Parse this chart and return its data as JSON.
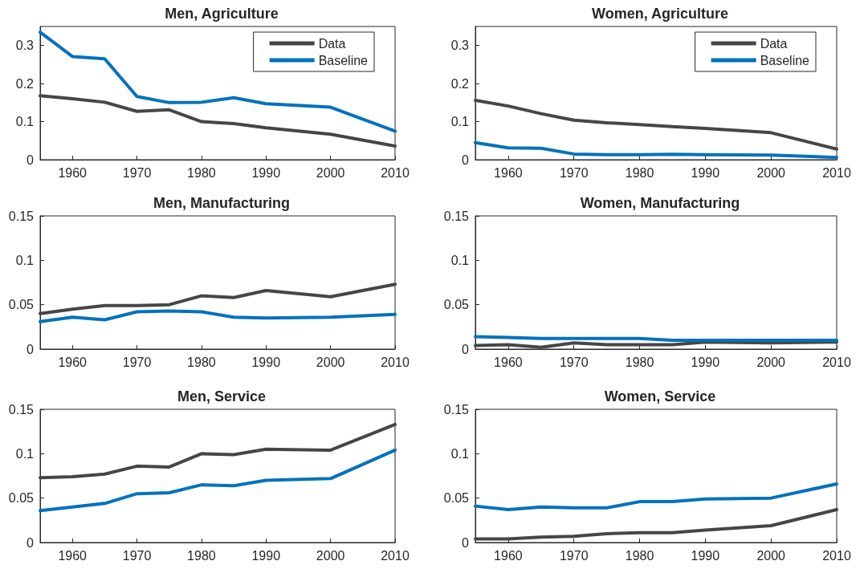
{
  "chart_data": [
    {
      "type": "line",
      "title": "Men, Agriculture",
      "x": [
        1955,
        1960,
        1965,
        1970,
        1975,
        1980,
        1985,
        1990,
        2000,
        2010
      ],
      "xlim": [
        1955,
        2010
      ],
      "xticks": [
        1960,
        1970,
        1980,
        1990,
        2000,
        2010
      ],
      "ylim": [
        0,
        0.35
      ],
      "yticks": [
        0,
        0.1,
        0.2,
        0.3
      ],
      "grid": false,
      "legend": "top right",
      "marker": "none",
      "line_style": "solid",
      "series": [
        {
          "name": "Data",
          "color": "#464646",
          "values": [
            0.168,
            0.16,
            0.151,
            0.127,
            0.131,
            0.1,
            0.095,
            0.084,
            0.067,
            0.036
          ]
        },
        {
          "name": "Baseline",
          "color": "#0072bd",
          "values": [
            0.335,
            0.271,
            0.265,
            0.166,
            0.15,
            0.151,
            0.163,
            0.147,
            0.138,
            0.075
          ]
        }
      ]
    },
    {
      "type": "line",
      "title": "Women, Agriculture",
      "x": [
        1955,
        1960,
        1965,
        1970,
        1975,
        1980,
        1985,
        1990,
        2000,
        2010
      ],
      "xlim": [
        1955,
        2010
      ],
      "xticks": [
        1960,
        1970,
        1980,
        1990,
        2000,
        2010
      ],
      "ylim": [
        0,
        0.35
      ],
      "yticks": [
        0,
        0.1,
        0.2,
        0.3
      ],
      "grid": false,
      "legend": "top right",
      "marker": "none",
      "line_style": "solid",
      "series": [
        {
          "name": "Data",
          "color": "#464646",
          "values": [
            0.156,
            0.141,
            0.121,
            0.104,
            0.097,
            0.092,
            0.087,
            0.082,
            0.071,
            0.028
          ]
        },
        {
          "name": "Baseline",
          "color": "#0072bd",
          "values": [
            0.045,
            0.031,
            0.03,
            0.015,
            0.013,
            0.013,
            0.014,
            0.013,
            0.012,
            0.006
          ]
        }
      ]
    },
    {
      "type": "line",
      "title": "Men, Manufacturing",
      "x": [
        1955,
        1960,
        1965,
        1970,
        1975,
        1980,
        1985,
        1990,
        2000,
        2010
      ],
      "xlim": [
        1955,
        2010
      ],
      "xticks": [
        1960,
        1970,
        1980,
        1990,
        2000,
        2010
      ],
      "ylim": [
        0,
        0.15
      ],
      "yticks": [
        0,
        0.05,
        0.1,
        0.15
      ],
      "grid": false,
      "marker": "none",
      "line_style": "solid",
      "series": [
        {
          "color": "#464646",
          "values": [
            0.04,
            0.045,
            0.049,
            0.049,
            0.05,
            0.06,
            0.058,
            0.066,
            0.059,
            0.073
          ]
        },
        {
          "color": "#0072bd",
          "values": [
            0.031,
            0.036,
            0.033,
            0.042,
            0.043,
            0.042,
            0.036,
            0.035,
            0.036,
            0.039
          ]
        }
      ]
    },
    {
      "type": "line",
      "title": "Women, Manufacturing",
      "x": [
        1955,
        1960,
        1965,
        1970,
        1975,
        1980,
        1985,
        1990,
        2000,
        2010
      ],
      "xlim": [
        1955,
        2010
      ],
      "xticks": [
        1960,
        1970,
        1980,
        1990,
        2000,
        2010
      ],
      "ylim": [
        0,
        0.15
      ],
      "yticks": [
        0,
        0.05,
        0.1,
        0.15
      ],
      "grid": false,
      "marker": "none",
      "line_style": "solid",
      "series": [
        {
          "color": "#464646",
          "values": [
            0.004,
            0.005,
            0.002,
            0.007,
            0.005,
            0.005,
            0.005,
            0.008,
            0.007,
            0.008
          ]
        },
        {
          "color": "#0072bd",
          "values": [
            0.014,
            0.013,
            0.012,
            0.012,
            0.012,
            0.012,
            0.01,
            0.01,
            0.01,
            0.01
          ]
        }
      ]
    },
    {
      "type": "line",
      "title": "Men, Service",
      "x": [
        1955,
        1960,
        1965,
        1970,
        1975,
        1980,
        1985,
        1990,
        2000,
        2010
      ],
      "xlim": [
        1955,
        2010
      ],
      "xticks": [
        1960,
        1970,
        1980,
        1990,
        2000,
        2010
      ],
      "ylim": [
        0,
        0.15
      ],
      "yticks": [
        0,
        0.05,
        0.1,
        0.15
      ],
      "grid": false,
      "marker": "none",
      "line_style": "solid",
      "series": [
        {
          "color": "#464646",
          "values": [
            0.073,
            0.074,
            0.077,
            0.086,
            0.085,
            0.1,
            0.099,
            0.105,
            0.104,
            0.133
          ]
        },
        {
          "color": "#0072bd",
          "values": [
            0.036,
            0.04,
            0.044,
            0.055,
            0.056,
            0.065,
            0.064,
            0.07,
            0.072,
            0.104
          ]
        }
      ]
    },
    {
      "type": "line",
      "title": "Women, Service",
      "x": [
        1955,
        1960,
        1965,
        1970,
        1975,
        1980,
        1985,
        1990,
        2000,
        2010
      ],
      "xlim": [
        1955,
        2010
      ],
      "xticks": [
        1960,
        1970,
        1980,
        1990,
        2000,
        2010
      ],
      "ylim": [
        0,
        0.15
      ],
      "yticks": [
        0,
        0.05,
        0.1,
        0.15
      ],
      "grid": false,
      "marker": "none",
      "line_style": "solid",
      "series": [
        {
          "color": "#464646",
          "values": [
            0.004,
            0.004,
            0.006,
            0.007,
            0.01,
            0.011,
            0.011,
            0.014,
            0.019,
            0.037
          ]
        },
        {
          "color": "#0072bd",
          "values": [
            0.041,
            0.037,
            0.04,
            0.039,
            0.039,
            0.046,
            0.046,
            0.049,
            0.05,
            0.066
          ]
        }
      ]
    }
  ]
}
